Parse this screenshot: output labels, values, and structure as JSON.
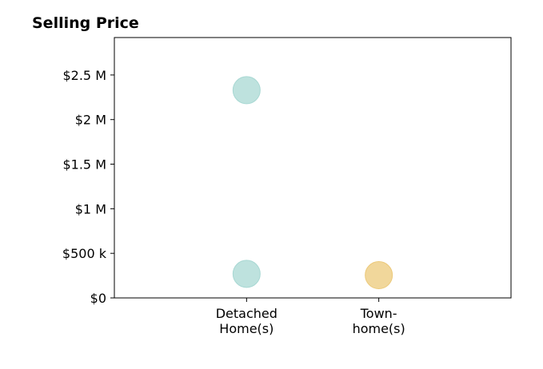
{
  "chart_data": {
    "type": "scatter",
    "title": "Selling Price",
    "xlabel": "",
    "ylabel": "",
    "categories": [
      [
        "Detached",
        "Home(s)"
      ],
      [
        "Town-",
        "home(s)"
      ]
    ],
    "y_ticks": [
      {
        "value": 0,
        "label": "$0"
      },
      {
        "value": 500000,
        "label": "$500 k"
      },
      {
        "value": 1000000,
        "label": "$1 M"
      },
      {
        "value": 1500000,
        "label": "$1.5 M"
      },
      {
        "value": 2000000,
        "label": "$2 M"
      },
      {
        "value": 2500000,
        "label": "$2.5 M"
      }
    ],
    "ylim": [
      0,
      2920000
    ],
    "xlim": [
      -1,
      2
    ],
    "grid": false,
    "legend": "none",
    "points": [
      {
        "category_index": 0,
        "value": 2330000,
        "color": "#a8d8d3"
      },
      {
        "category_index": 0,
        "value": 270000,
        "color": "#a8d8d3"
      },
      {
        "category_index": 1,
        "value": 255000,
        "color": "#ecc97a"
      }
    ]
  }
}
